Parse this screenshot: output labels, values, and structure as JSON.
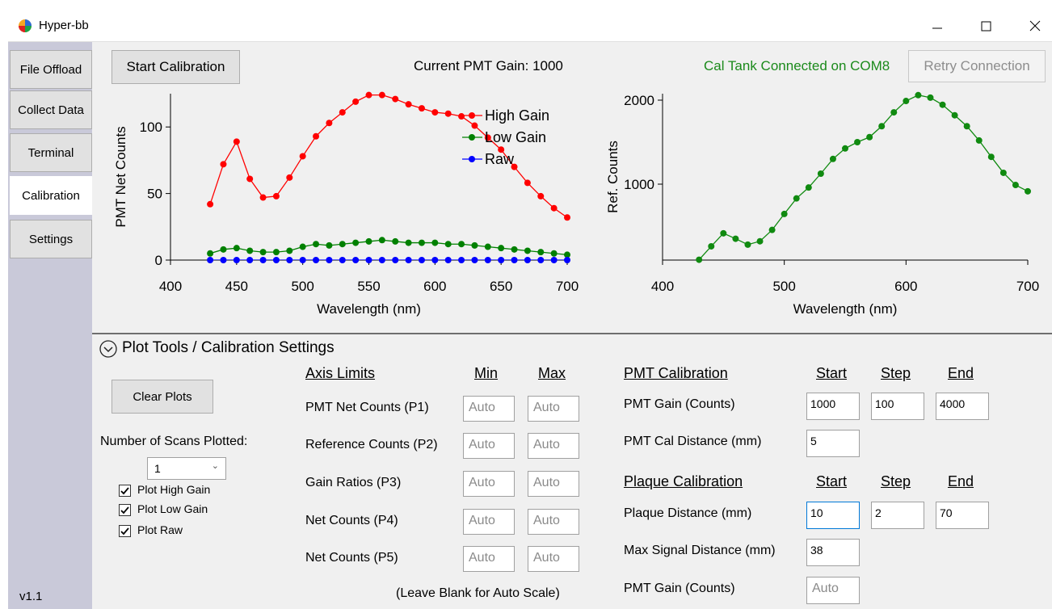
{
  "window": {
    "title": "Hyper-bb"
  },
  "sidebar": {
    "tabs": [
      "File Offload",
      "Collect Data",
      "Terminal",
      "Calibration",
      "Settings"
    ],
    "active_tab": 3,
    "version": "v1.1"
  },
  "toolbar": {
    "start_button": "Start Calibration",
    "gain_label": "Current PMT Gain: 1000",
    "status": "Cal Tank Connected on COM8",
    "retry_button": "Retry Connection"
  },
  "chart_data": [
    {
      "type": "line",
      "xlabel": "Wavelength (nm)",
      "ylabel": "PMT Net Counts",
      "x": [
        430,
        440,
        450,
        460,
        470,
        480,
        490,
        500,
        510,
        520,
        530,
        540,
        550,
        560,
        570,
        580,
        590,
        600,
        610,
        620,
        630,
        640,
        650,
        660,
        670,
        680,
        690,
        700
      ],
      "xlim": [
        400,
        700
      ],
      "xticks": [
        400,
        450,
        500,
        550,
        600,
        650,
        700
      ],
      "ylim": [
        0,
        125
      ],
      "yticks": [
        0,
        50,
        100
      ],
      "legend": "upper right",
      "series": [
        {
          "name": "High Gain",
          "color": "#ff0000",
          "values": [
            42,
            72,
            89,
            61,
            47,
            48,
            62,
            78,
            93,
            103,
            111,
            119,
            124,
            124,
            121,
            117,
            114,
            111,
            110,
            108,
            101,
            92,
            83,
            70,
            58,
            48,
            39,
            32
          ]
        },
        {
          "name": "Low Gain",
          "color": "#008000",
          "values": [
            5,
            8,
            9,
            7,
            6,
            6,
            7,
            10,
            12,
            11,
            12,
            13,
            14,
            15,
            14,
            13,
            13,
            13,
            12,
            12,
            11,
            10,
            9,
            8,
            7,
            6,
            5,
            4
          ]
        },
        {
          "name": "Raw",
          "color": "#0000ff",
          "values": [
            0,
            0,
            0,
            0,
            0,
            0,
            0,
            0,
            0,
            0,
            0,
            0,
            0,
            0,
            0,
            0,
            0,
            0,
            0,
            0,
            0,
            0,
            0,
            0,
            0,
            0,
            0,
            0
          ]
        }
      ]
    },
    {
      "type": "line",
      "xlabel": "Wavelength (nm)",
      "ylabel": "Ref. Counts",
      "x": [
        430,
        440,
        450,
        460,
        470,
        480,
        490,
        500,
        510,
        520,
        530,
        540,
        550,
        560,
        570,
        580,
        590,
        600,
        610,
        620,
        630,
        640,
        650,
        660,
        670,
        680,
        690,
        700
      ],
      "xlim": [
        400,
        700
      ],
      "xticks": [
        400,
        500,
        600,
        700
      ],
      "ylim": [
        96,
        2077
      ],
      "yticks": [
        1000,
        2000
      ],
      "series": [
        {
          "color": "#108a10",
          "values": [
            100,
            260,
            415,
            350,
            280,
            320,
            455,
            645,
            830,
            960,
            1125,
            1300,
            1425,
            1500,
            1560,
            1690,
            1855,
            1990,
            2060,
            2030,
            1945,
            1820,
            1690,
            1520,
            1325,
            1135,
            990,
            915
          ]
        }
      ]
    }
  ],
  "settings": {
    "header": "Plot Tools / Calibration Settings",
    "clear_button": "Clear Plots",
    "scans_label": "Number of Scans Plotted:",
    "scans_value": "1",
    "checkboxes": [
      {
        "label": "Plot High Gain",
        "checked": true
      },
      {
        "label": "Plot Low Gain",
        "checked": true
      },
      {
        "label": "Plot Raw",
        "checked": true
      }
    ],
    "axis_limits": {
      "title": "Axis Limits",
      "min": "Min",
      "max": "Max",
      "rows": [
        {
          "label": "PMT Net Counts (P1)",
          "min": "Auto",
          "max": "Auto"
        },
        {
          "label": "Reference Counts (P2)",
          "min": "Auto",
          "max": "Auto"
        },
        {
          "label": "Gain Ratios (P3)",
          "min": "Auto",
          "max": "Auto"
        },
        {
          "label": "Net Counts (P4)",
          "min": "Auto",
          "max": "Auto"
        },
        {
          "label": "Net Counts (P5)",
          "min": "Auto",
          "max": "Auto"
        }
      ],
      "note": "(Leave Blank for Auto Scale)"
    },
    "pmt_calibration": {
      "title": "PMT Calibration",
      "start": "Start",
      "step": "Step",
      "end": "End",
      "rows": [
        {
          "label": "PMT Gain (Counts)",
          "values": [
            "1000",
            "100",
            "4000"
          ]
        },
        {
          "label": "PMT Cal Distance (mm)",
          "values": [
            "5"
          ]
        }
      ]
    },
    "plaque_calibration": {
      "title": "Plaque Calibration",
      "start": "Start",
      "step": "Step",
      "end": "End",
      "rows": [
        {
          "label": "Plaque Distance (mm)",
          "values": [
            "10",
            "2",
            "70"
          ]
        },
        {
          "label": "Max Signal Distance (mm)",
          "values": [
            "38"
          ]
        },
        {
          "label": "PMT Gain (Counts)",
          "placeholder": "Auto"
        }
      ]
    }
  }
}
